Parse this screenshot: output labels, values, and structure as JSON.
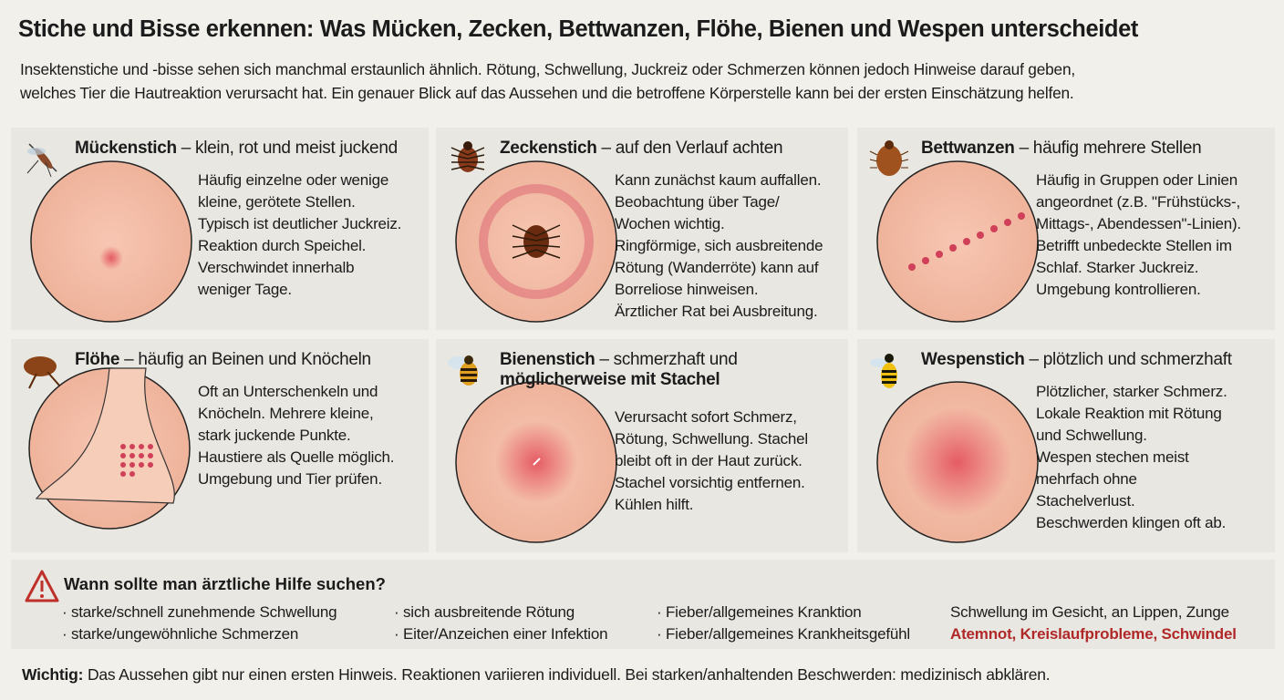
{
  "header": {
    "title": "Stiche und Bisse erkennen: Was Mücken, Zecken, Bettwanzen, Flöhe, Bienen und Wespen unterscheidet",
    "intro": [
      "Insektenstiche und -bisse sehen sich manchmal erstaunlich ähnlich. Rötung, Schwellung, Juckreiz oder Schmerzen können jedoch Hinweise darauf geben,",
      "welches Tier die Hautreaktion verursacht hat. Ein genauer Blick auf das Aussehen und die betroffene Körperstelle kann bei der ersten Einschätzung helfen."
    ]
  },
  "panels": [
    {
      "name": "Mückenstich",
      "subtitle": "– klein, rot und meist juckend",
      "lines": [
        "Häufig einzelne oder wenige",
        "kleine, gerötete Stellen.",
        "Typisch ist deutlicher Juckreiz.",
        "Reaktion durch Speichel.",
        "Verschwindet innerhalb",
        "weniger Tage."
      ]
    },
    {
      "name": "Zeckenstich",
      "subtitle": "– auf den Verlauf achten",
      "lines": [
        "Kann zunächst kaum auffallen.",
        "Beobachtung über Tage/",
        "Wochen wichtig.",
        "Ringförmige, sich ausbreitende",
        "Rötung (Wanderröte) kann auf",
        "Borreliose hinweisen.",
        "Ärztlicher Rat bei Ausbreitung."
      ]
    },
    {
      "name": "Bettwanzen",
      "subtitle": "– häufig mehrere Stellen",
      "lines": [
        "Häufig in Gruppen oder Linien",
        "angeordnet (z.B. \"Frühstücks-,",
        "Mittags-, Abendessen\"-Linien).",
        "Betrifft unbedeckte Stellen im",
        "Schlaf. Starker Juckreiz.",
        "Umgebung kontrollieren."
      ]
    },
    {
      "name": "Flöhe",
      "subtitle": "– häufig an Beinen und Knöcheln",
      "lines": [
        "Oft an Unterschenkeln und",
        "Knöcheln. Mehrere kleine,",
        "stark juckende Punkte.",
        "Haustiere als Quelle möglich.",
        "Umgebung und Tier prüfen."
      ]
    },
    {
      "name": "Bienenstich",
      "subtitle": "– schmerzhaft und",
      "subtitle_bold": "möglicherweise mit Stachel",
      "lines": [
        "Verursacht sofort Schmerz,",
        "Rötung, Schwellung. Stachel",
        "bleibt oft in der Haut zurück.",
        "Stachel vorsichtig entfernen.",
        "Kühlen hilft."
      ]
    },
    {
      "name": "Wespenstich",
      "subtitle": "– plötzlich und schmerzhaft",
      "lines": [
        "Plötzlicher, starker Schmerz.",
        "Lokale Reaktion mit Rötung",
        "und Schwellung.",
        "Wespen stechen meist",
        "mehrfach ohne",
        "Stachelverlust.",
        "Beschwerden klingen oft ab."
      ]
    }
  ],
  "help": {
    "title": "Wann sollte man ärztliche Hilfe suchen?",
    "columns": [
      [
        "· starke/schnell zunehmende Schwellung",
        "· starke/ungewöhnliche Schmerzen"
      ],
      [
        "· sich ausbreitende Rötung",
        "· Eiter/Anzeichen einer Infektion"
      ],
      [
        "· Fieber/allgemeines Kranktion",
        "· Fieber/allgemeines Krankheitsgefühl"
      ],
      [
        "Schwellung im Gesicht, an Lippen, Zunge",
        "Atemnot, Kreislaufprobleme, Schwindel"
      ]
    ]
  },
  "footer": {
    "label": "Wichtig:",
    "text": "Das Aussehen gibt nur einen ersten Hinweis. Reaktionen variieren individuell. Bei starken/anhaltenden Beschwerden: medizinisch abklären."
  }
}
